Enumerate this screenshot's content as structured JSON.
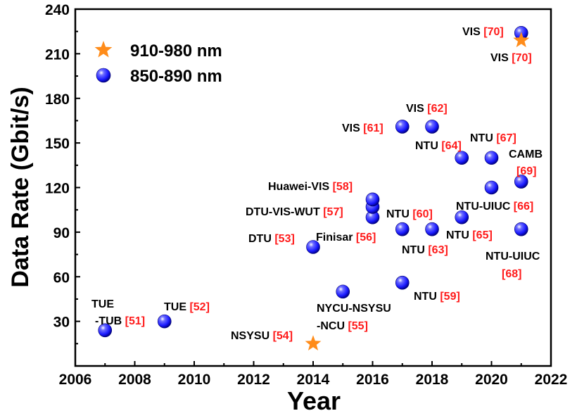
{
  "chart_data": {
    "type": "scatter",
    "title": "",
    "xlabel": "Year",
    "ylabel": "Data Rate (Gbit/s)",
    "xlim": [
      2006,
      2022
    ],
    "ylim": [
      0,
      240
    ],
    "xticks": [
      2006,
      2008,
      2010,
      2012,
      2014,
      2016,
      2018,
      2020,
      2022
    ],
    "yticks": [
      30,
      60,
      90,
      120,
      150,
      180,
      210,
      240
    ],
    "grid": false,
    "legend_position": "top-left",
    "ref_color": "#ff1a1a",
    "series": [
      {
        "name": "910-980 nm",
        "marker": "star",
        "color": "#ff8c1a",
        "points": [
          {
            "x": 2014,
            "y": 15
          },
          {
            "x": 2021,
            "y": 219
          }
        ]
      },
      {
        "name": "850-890 nm",
        "marker": "sphere",
        "color": "#1a1aff",
        "points": [
          {
            "x": 2007,
            "y": 24
          },
          {
            "x": 2009,
            "y": 30
          },
          {
            "x": 2014,
            "y": 80
          },
          {
            "x": 2015,
            "y": 50
          },
          {
            "x": 2016,
            "y": 100
          },
          {
            "x": 2016,
            "y": 107
          },
          {
            "x": 2016,
            "y": 112
          },
          {
            "x": 2017,
            "y": 92
          },
          {
            "x": 2017,
            "y": 56
          },
          {
            "x": 2017,
            "y": 161
          },
          {
            "x": 2018,
            "y": 92
          },
          {
            "x": 2018,
            "y": 161
          },
          {
            "x": 2019,
            "y": 140
          },
          {
            "x": 2019,
            "y": 100
          },
          {
            "x": 2020,
            "y": 140
          },
          {
            "x": 2020,
            "y": 120
          },
          {
            "x": 2021,
            "y": 124
          },
          {
            "x": 2021,
            "y": 92
          },
          {
            "x": 2021,
            "y": 224
          }
        ]
      }
    ],
    "annotations": [
      {
        "lines": [
          {
            "name": "TUE",
            "ref": ""
          },
          {
            "name": "-TUB",
            "ref": "[51]"
          }
        ]
      },
      {
        "lines": [
          {
            "name": "TUE",
            "ref": "[52]"
          }
        ]
      },
      {
        "lines": [
          {
            "name": "NSYSU",
            "ref": "[54]"
          }
        ]
      },
      {
        "lines": [
          {
            "name": "DTU",
            "ref": "[53]"
          }
        ]
      },
      {
        "lines": [
          {
            "name": "NYCU-NSYSU",
            "ref": ""
          },
          {
            "name": "-NCU",
            "ref": "[55]"
          }
        ]
      },
      {
        "lines": [
          {
            "name": "Finisar",
            "ref": "[56]"
          }
        ]
      },
      {
        "lines": [
          {
            "name": "DTU-VIS-WUT",
            "ref": "[57]"
          }
        ]
      },
      {
        "lines": [
          {
            "name": "Huawei-VIS",
            "ref": "[58]"
          }
        ]
      },
      {
        "lines": [
          {
            "name": "NTU",
            "ref": "[59]"
          }
        ]
      },
      {
        "lines": [
          {
            "name": "NTU",
            "ref": "[60]"
          }
        ]
      },
      {
        "lines": [
          {
            "name": "VIS",
            "ref": "[61]"
          }
        ]
      },
      {
        "lines": [
          {
            "name": "VIS",
            "ref": "[62]"
          }
        ]
      },
      {
        "lines": [
          {
            "name": "NTU",
            "ref": "[63]"
          }
        ]
      },
      {
        "lines": [
          {
            "name": "NTU",
            "ref": "[64]"
          }
        ]
      },
      {
        "lines": [
          {
            "name": "NTU",
            "ref": "[65]"
          }
        ]
      },
      {
        "lines": [
          {
            "name": "NTU-UIUC",
            "ref": "[66]"
          }
        ]
      },
      {
        "lines": [
          {
            "name": "NTU",
            "ref": "[67]"
          }
        ]
      },
      {
        "lines": [
          {
            "name": "CAMB",
            "ref": ""
          },
          {
            "name": "",
            "ref": "[69]"
          }
        ]
      },
      {
        "lines": [
          {
            "name": "NTU-UIUC",
            "ref": ""
          },
          {
            "name": "",
            "ref": "[68]"
          }
        ]
      },
      {
        "lines": [
          {
            "name": "VIS",
            "ref": "[70]"
          }
        ]
      },
      {
        "lines": [
          {
            "name": "VIS",
            "ref": "[70]"
          }
        ]
      }
    ]
  }
}
